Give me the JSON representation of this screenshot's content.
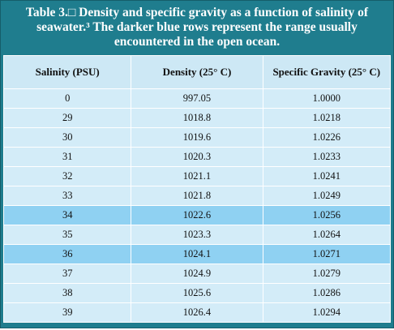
{
  "caption": "Table 3.□ Density and specific gravity as a function of salinity of seawater.³ The darker blue rows represent the range usually encountered in the open ocean.",
  "table": {
    "header": [
      "Salinity (PSU)",
      "Density (25° C)",
      "Specific Gravity (25° C)"
    ],
    "rows": [
      [
        "0",
        "997.05",
        "1.0000"
      ],
      [
        "29",
        "1018.8",
        "1.0218"
      ],
      [
        "30",
        "1019.6",
        "1.0226"
      ],
      [
        "31",
        "1020.3",
        "1.0233"
      ],
      [
        "32",
        "1021.1",
        "1.0241"
      ],
      [
        "33",
        "1021.8",
        "1.0249"
      ],
      [
        "34",
        "1022.6",
        "1.0256"
      ],
      [
        "35",
        "1023.3",
        "1.0264"
      ],
      [
        "36",
        "1024.1",
        "1.0271"
      ],
      [
        "37",
        "1024.9",
        "1.0279"
      ],
      [
        "38",
        "1025.6",
        "1.0286"
      ],
      [
        "39",
        "1026.4",
        "1.0294"
      ]
    ]
  }
}
